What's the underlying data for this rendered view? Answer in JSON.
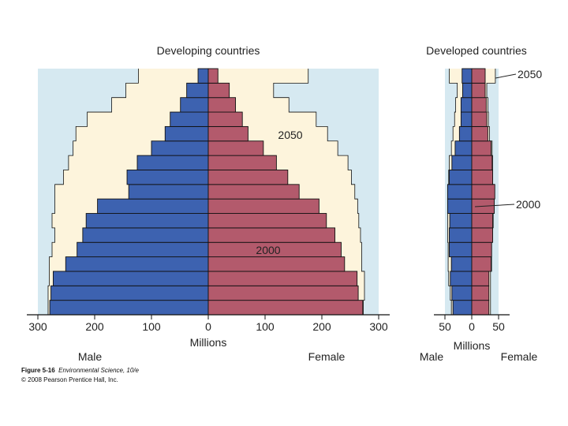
{
  "colors": {
    "background_panel": "#d6e9f1",
    "projection_fill": "#fdf4dc",
    "male": "#3d62b0",
    "female": "#b35a6c",
    "outline": "#111111",
    "text": "#222222"
  },
  "chart_data": [
    {
      "type": "bar",
      "subtype": "population-pyramid",
      "title": "Developing countries",
      "xlabel": "Millions",
      "left_label": "Male",
      "right_label": "Female",
      "xlim": [
        -300,
        300
      ],
      "x_ticks": [
        -300,
        -200,
        -100,
        0,
        100,
        200,
        300
      ],
      "x_tick_labels": [
        "300",
        "200",
        "100",
        "0",
        "100",
        "200",
        "300"
      ],
      "series": [
        {
          "name": "2000",
          "male": [
            279,
            277,
            273,
            251,
            231,
            221,
            215,
            195,
            140,
            143,
            125,
            100,
            76,
            67,
            49,
            38,
            18
          ],
          "female": [
            272,
            264,
            262,
            240,
            234,
            223,
            208,
            195,
            160,
            140,
            120,
            97,
            70,
            60,
            48,
            37,
            17
          ]
        },
        {
          "name": "2050",
          "male": [
            282,
            282,
            280,
            280,
            275,
            270,
            275,
            270,
            270,
            255,
            246,
            238,
            233,
            213,
            170,
            145,
            123
          ],
          "female": [
            273,
            275,
            275,
            270,
            270,
            268,
            265,
            263,
            258,
            252,
            246,
            228,
            210,
            190,
            142,
            115,
            176
          ]
        }
      ],
      "annotations": [
        "2050",
        "2000"
      ]
    },
    {
      "type": "bar",
      "subtype": "population-pyramid",
      "title": "Developed countries",
      "xlabel": "Millions",
      "left_label": "Male",
      "right_label": "Female",
      "xlim": [
        -50,
        50
      ],
      "x_ticks": [
        -50,
        0,
        50
      ],
      "x_tick_labels": [
        "50",
        "0",
        "50"
      ],
      "series": [
        {
          "name": "2000",
          "male": [
            35,
            37,
            40,
            38,
            42,
            42,
            41,
            45,
            45,
            42,
            37,
            31,
            23,
            20,
            20,
            17,
            18
          ],
          "female": [
            32,
            32,
            32,
            36,
            37,
            39,
            39,
            42,
            43,
            39,
            38,
            36,
            30,
            28,
            27,
            25,
            25
          ]
        },
        {
          "name": "2050",
          "male": [
            38,
            40,
            43,
            44,
            44,
            45,
            45,
            45,
            44,
            43,
            42,
            38,
            35,
            32,
            30,
            27,
            42
          ],
          "female": [
            35,
            35,
            35,
            37,
            37,
            39,
            40,
            41,
            42,
            39,
            39,
            38,
            33,
            31,
            30,
            28,
            44
          ]
        }
      ],
      "annotations": [
        "2050",
        "2000"
      ]
    }
  ],
  "caption": {
    "figure": "Figure 5-16",
    "book": "Environmental Science, 10/e",
    "copyright": "© 2008 Pearson Prentice Hall, Inc."
  }
}
